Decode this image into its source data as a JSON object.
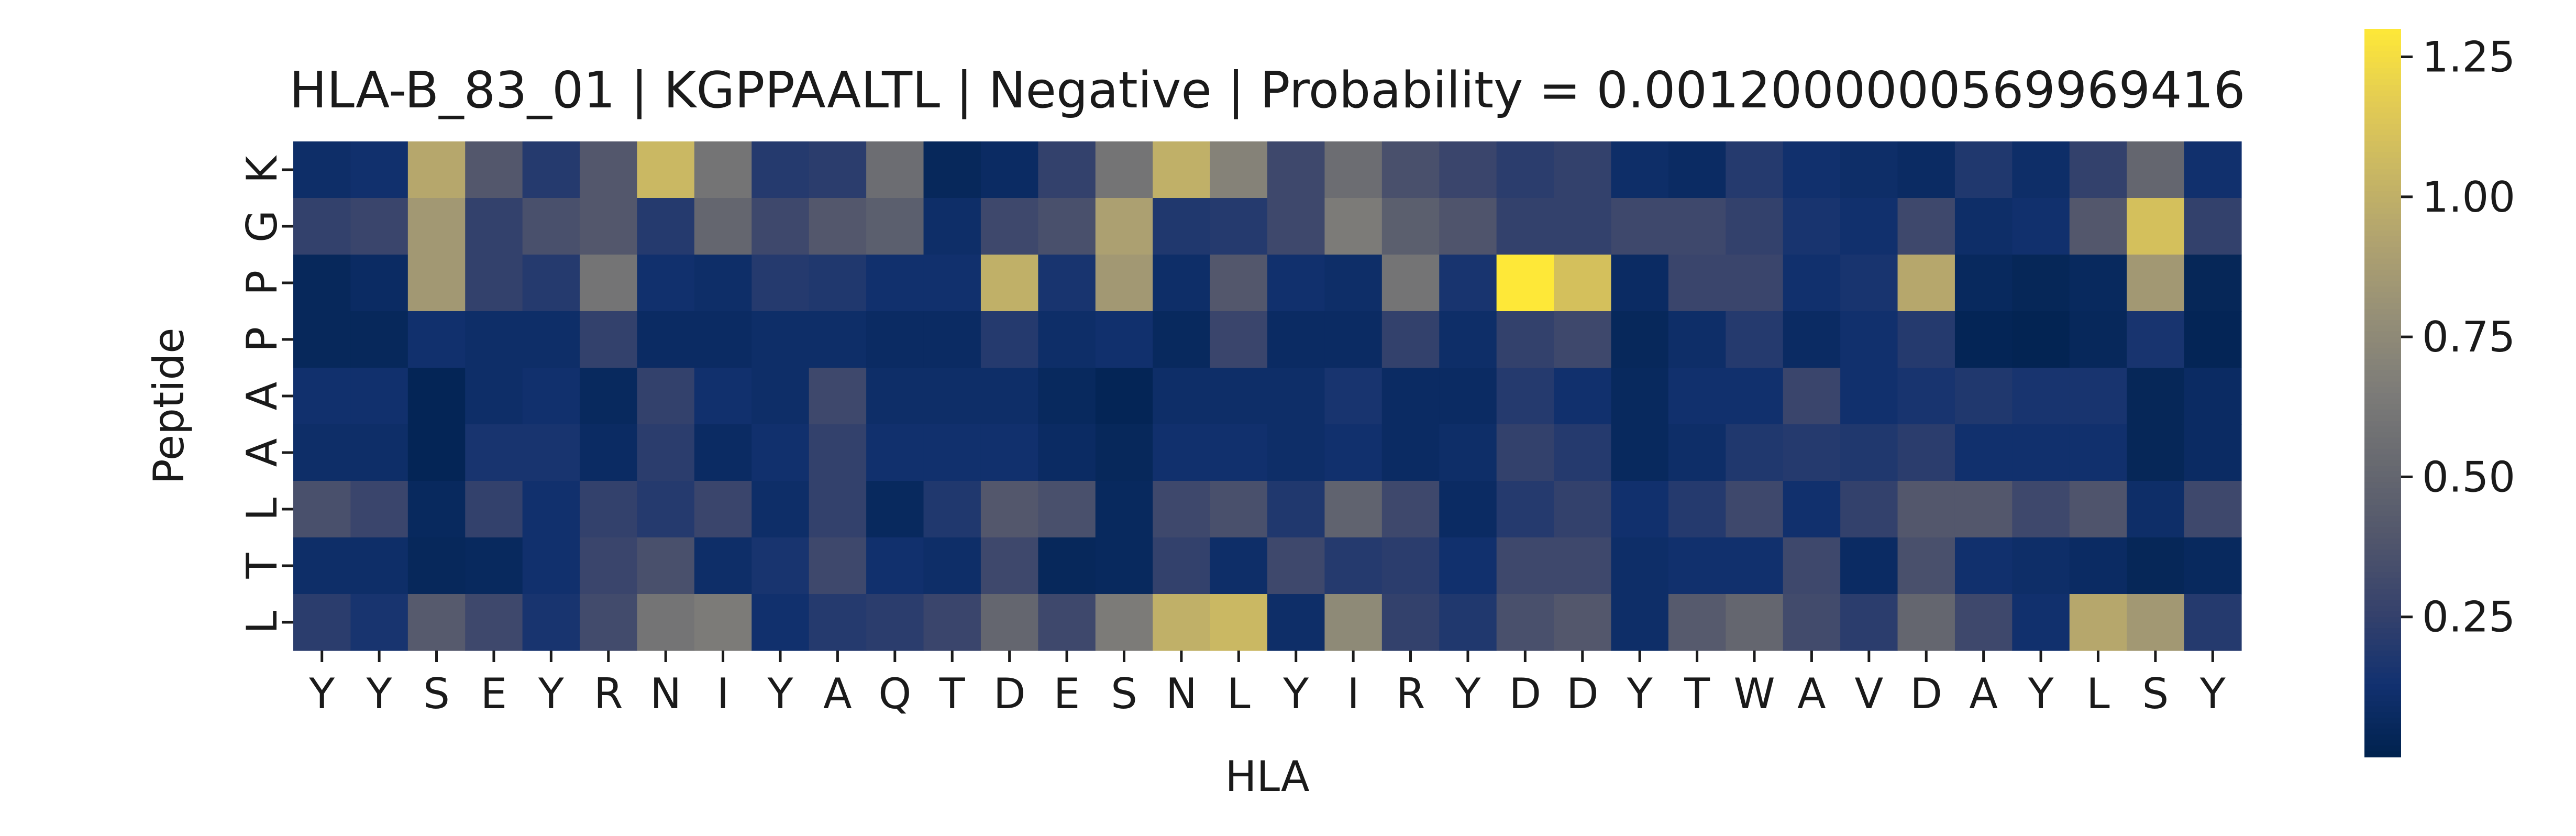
{
  "chart_data": {
    "type": "heatmap",
    "title": "HLA-B_83_01 | KGPPAALTL | Negative | Probability = 0.0012000000569969416",
    "xlabel": "HLA",
    "ylabel": "Peptide",
    "x_categories": [
      "Y",
      "Y",
      "S",
      "E",
      "Y",
      "R",
      "N",
      "I",
      "Y",
      "A",
      "Q",
      "T",
      "D",
      "E",
      "S",
      "N",
      "L",
      "Y",
      "I",
      "R",
      "Y",
      "D",
      "D",
      "Y",
      "T",
      "W",
      "A",
      "V",
      "D",
      "A",
      "Y",
      "L",
      "S",
      "Y"
    ],
    "y_categories": [
      "K",
      "G",
      "P",
      "P",
      "A",
      "A",
      "L",
      "T",
      "L"
    ],
    "colormap": "cividis",
    "value_range": [
      0.0,
      1.3
    ],
    "colorbar_ticks": [
      0.25,
      0.5,
      0.75,
      1.0,
      1.25
    ],
    "colorbar_tick_labels": [
      "0.25",
      "0.50",
      "0.75",
      "1.00",
      "1.25"
    ],
    "values": [
      [
        0.1,
        0.12,
        0.95,
        0.4,
        0.2,
        0.4,
        1.05,
        0.6,
        0.2,
        0.22,
        0.55,
        0.05,
        0.08,
        0.25,
        0.6,
        1.0,
        0.7,
        0.3,
        0.55,
        0.35,
        0.28,
        0.22,
        0.25,
        0.1,
        0.08,
        0.2,
        0.12,
        0.1,
        0.08,
        0.18,
        0.1,
        0.25,
        0.5,
        0.12
      ],
      [
        0.25,
        0.28,
        0.85,
        0.25,
        0.35,
        0.4,
        0.2,
        0.5,
        0.3,
        0.4,
        0.45,
        0.1,
        0.3,
        0.35,
        0.9,
        0.18,
        0.2,
        0.3,
        0.65,
        0.45,
        0.38,
        0.25,
        0.25,
        0.3,
        0.3,
        0.25,
        0.15,
        0.12,
        0.3,
        0.1,
        0.12,
        0.4,
        1.1,
        0.25
      ],
      [
        0.05,
        0.08,
        0.85,
        0.25,
        0.2,
        0.6,
        0.12,
        0.1,
        0.2,
        0.18,
        0.12,
        0.12,
        1.0,
        0.15,
        0.85,
        0.1,
        0.4,
        0.12,
        0.1,
        0.6,
        0.15,
        1.3,
        1.1,
        0.08,
        0.28,
        0.28,
        0.12,
        0.15,
        0.95,
        0.06,
        0.04,
        0.06,
        0.85,
        0.04
      ],
      [
        0.05,
        0.05,
        0.12,
        0.1,
        0.1,
        0.25,
        0.08,
        0.08,
        0.1,
        0.1,
        0.08,
        0.08,
        0.2,
        0.1,
        0.12,
        0.06,
        0.28,
        0.08,
        0.08,
        0.25,
        0.1,
        0.25,
        0.3,
        0.05,
        0.1,
        0.2,
        0.08,
        0.12,
        0.2,
        0.03,
        0.02,
        0.05,
        0.15,
        0.03
      ],
      [
        0.12,
        0.12,
        0.03,
        0.1,
        0.12,
        0.06,
        0.25,
        0.12,
        0.1,
        0.3,
        0.1,
        0.1,
        0.1,
        0.06,
        0.03,
        0.1,
        0.1,
        0.1,
        0.15,
        0.08,
        0.08,
        0.2,
        0.12,
        0.06,
        0.12,
        0.12,
        0.28,
        0.12,
        0.15,
        0.18,
        0.15,
        0.15,
        0.04,
        0.08
      ],
      [
        0.1,
        0.1,
        0.03,
        0.15,
        0.15,
        0.08,
        0.22,
        0.08,
        0.12,
        0.25,
        0.12,
        0.12,
        0.12,
        0.08,
        0.05,
        0.12,
        0.12,
        0.1,
        0.12,
        0.08,
        0.1,
        0.25,
        0.2,
        0.06,
        0.1,
        0.18,
        0.2,
        0.18,
        0.22,
        0.12,
        0.12,
        0.12,
        0.04,
        0.08
      ],
      [
        0.35,
        0.28,
        0.06,
        0.25,
        0.12,
        0.25,
        0.2,
        0.28,
        0.1,
        0.25,
        0.06,
        0.18,
        0.4,
        0.35,
        0.06,
        0.3,
        0.35,
        0.18,
        0.48,
        0.3,
        0.08,
        0.2,
        0.25,
        0.12,
        0.2,
        0.3,
        0.12,
        0.25,
        0.4,
        0.4,
        0.3,
        0.38,
        0.1,
        0.3
      ],
      [
        0.1,
        0.1,
        0.05,
        0.06,
        0.12,
        0.28,
        0.35,
        0.1,
        0.15,
        0.3,
        0.12,
        0.1,
        0.3,
        0.05,
        0.06,
        0.25,
        0.1,
        0.3,
        0.2,
        0.22,
        0.12,
        0.3,
        0.3,
        0.1,
        0.12,
        0.12,
        0.3,
        0.08,
        0.35,
        0.12,
        0.1,
        0.08,
        0.04,
        0.06
      ],
      [
        0.22,
        0.15,
        0.42,
        0.3,
        0.15,
        0.32,
        0.6,
        0.65,
        0.12,
        0.2,
        0.22,
        0.28,
        0.5,
        0.3,
        0.65,
        1.0,
        1.05,
        0.1,
        0.75,
        0.25,
        0.18,
        0.35,
        0.4,
        0.1,
        0.42,
        0.5,
        0.32,
        0.22,
        0.5,
        0.3,
        0.12,
        0.95,
        0.85,
        0.2
      ]
    ]
  }
}
